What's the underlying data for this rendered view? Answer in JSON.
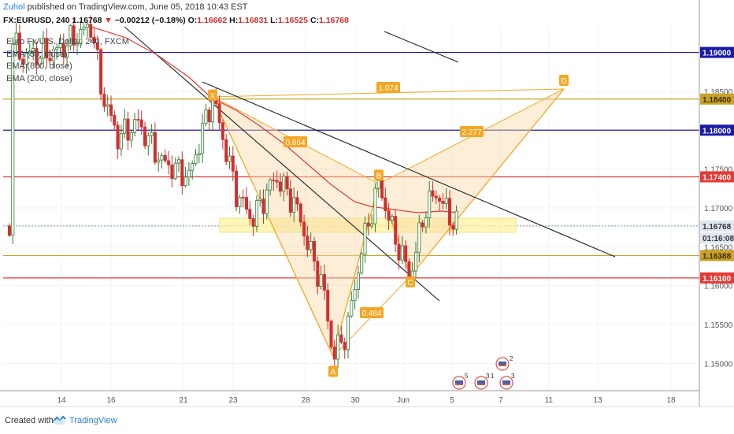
{
  "header": {
    "user": "Zuhol",
    "published_text": " published on TradingView.com, June 05, 2018 10:43 EST"
  },
  "quote": {
    "symbol": "FX:EURUSD, 240",
    "last": "1.16768",
    "change": "−0.00212 (−0.18%)",
    "open_label": "O:",
    "open": "1.16662",
    "high_label": "H:",
    "high": "1.16831",
    "low_label": "L:",
    "low": "1.16525",
    "close_label": "C:",
    "close": "1.16768"
  },
  "legend": {
    "title": "Euro Fx/U.S. Dollar, 240, FXCM",
    "items": [
      "EMA (50, close)",
      "EMA (800, close)",
      "EMA (200, close)"
    ]
  },
  "footer": {
    "created_with": "Created with",
    "brand": "TradingView"
  },
  "colors": {
    "up": "#2e7d32",
    "down": "#d32f2f",
    "pattern": "#f5a623",
    "blue_line": "#1a1aa6",
    "red_line": "#e53935",
    "gold_line": "#c9a227",
    "ema": "#e53935"
  },
  "chart_data": {
    "type": "candlestick",
    "timeframe": "240",
    "ylim": [
      1.1465,
      1.1935
    ],
    "x_ticks": [
      "14",
      "16",
      "21",
      "23",
      "28",
      "30",
      "Jun",
      "5",
      "7",
      "11",
      "13",
      "18"
    ],
    "price_labels": [
      "1.19000",
      "1.18400",
      "1.18000",
      "1.17400",
      "1.16768",
      "01:16:08",
      "1.16500",
      "1.16388",
      "1.16100",
      "1.16000",
      "1.15500",
      "1.15000",
      "1.18500",
      "1.17500",
      "1.17000",
      "1.16500"
    ],
    "horizontal_levels": [
      {
        "price": 1.19,
        "label": "1.19000",
        "color": "blue"
      },
      {
        "price": 1.184,
        "label": "1.18400",
        "color": "gold"
      },
      {
        "price": 1.18,
        "label": "1.18000",
        "color": "blue"
      },
      {
        "price": 1.174,
        "label": "1.17400",
        "color": "red"
      },
      {
        "price": 1.16388,
        "label": "1.16388",
        "color": "gold"
      },
      {
        "price": 1.161,
        "label": "1.16100",
        "color": "red"
      }
    ],
    "axis_ticks": [
      {
        "price": 1.185,
        "label": "1.18500"
      },
      {
        "price": 1.175,
        "label": "1.17500"
      },
      {
        "price": 1.17,
        "label": "1.17000"
      },
      {
        "price": 1.165,
        "label": "1.16500"
      },
      {
        "price": 1.16,
        "label": "1.16000"
      },
      {
        "price": 1.155,
        "label": "1.15500"
      },
      {
        "price": 1.15,
        "label": "1.15000"
      }
    ],
    "last_price": {
      "price": 1.16768,
      "label": "1.16768",
      "countdown": "01:16:08"
    },
    "harmonic_pattern": {
      "points": [
        {
          "name": "X",
          "price": 1.1843
        },
        {
          "name": "A",
          "price": 1.1509
        },
        {
          "name": "B",
          "price": 1.1731
        },
        {
          "name": "C",
          "price": 1.1612
        },
        {
          "name": "D",
          "price": 1.1853
        }
      ],
      "ratios": [
        {
          "label": "0.664",
          "between": "XB"
        },
        {
          "label": "0.484",
          "between": "AC"
        },
        {
          "label": "2.277",
          "between": "BD"
        },
        {
          "label": "1.074",
          "between": "XD"
        }
      ]
    },
    "event_counts": [
      "5",
      "3",
      "1",
      "3",
      "2"
    ]
  }
}
